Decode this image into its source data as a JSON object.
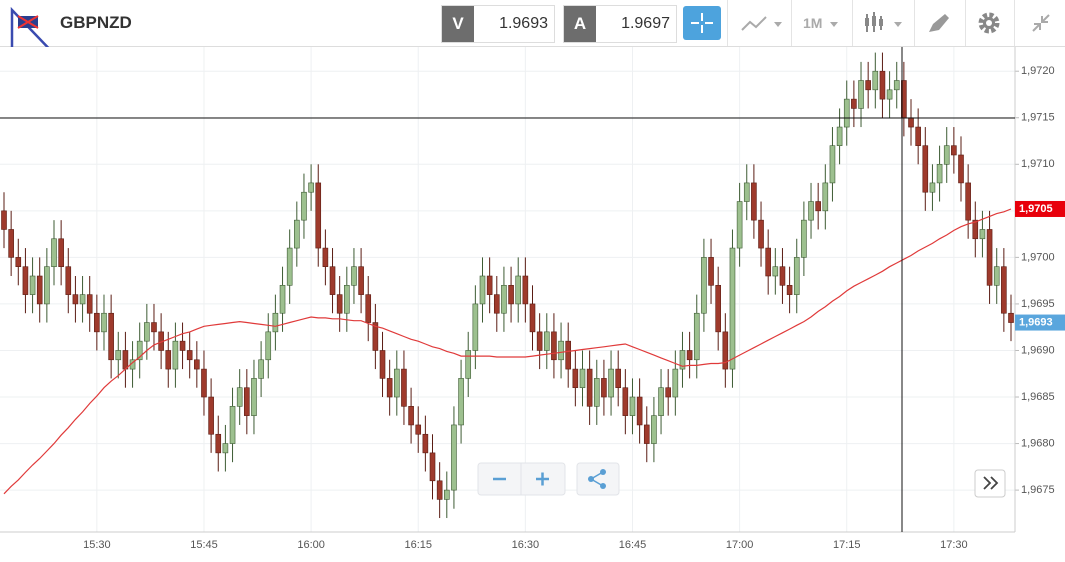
{
  "toolbar": {
    "symbol": "GBPNZD",
    "bid_label": "V",
    "bid": "1.9693",
    "ask_label": "A",
    "ask": "1.9697",
    "timeframe": "1M"
  },
  "chart_data": {
    "type": "candlestick",
    "categories": [
      null,
      null,
      null,
      null,
      null,
      null,
      null,
      null,
      null,
      null,
      null,
      null,
      null,
      "15:30",
      null,
      null,
      null,
      null,
      null,
      null,
      null,
      null,
      null,
      null,
      null,
      null,
      null,
      null,
      "15:45",
      null,
      null,
      null,
      null,
      null,
      null,
      null,
      null,
      null,
      null,
      null,
      null,
      null,
      null,
      "16:00",
      null,
      null,
      null,
      null,
      null,
      null,
      null,
      null,
      null,
      null,
      null,
      null,
      null,
      null,
      "16:15",
      null,
      null,
      null,
      null,
      null,
      null,
      null,
      null,
      null,
      null,
      null,
      null,
      null,
      null,
      "16:30",
      null,
      null,
      null,
      null,
      null,
      null,
      null,
      null,
      null,
      null,
      null,
      null,
      null,
      null,
      "16:45",
      null,
      null,
      null,
      null,
      null,
      null,
      null,
      null,
      null,
      null,
      null,
      null,
      null,
      null,
      "17:00",
      null,
      null,
      null,
      null,
      null,
      null,
      null,
      null,
      null,
      null,
      null,
      null,
      null,
      null,
      "17:15",
      null,
      null,
      null,
      null,
      null,
      null,
      null,
      null,
      null,
      null,
      null,
      null,
      null,
      null,
      "17:30",
      null,
      null,
      null,
      null,
      null,
      null,
      null,
      null
    ],
    "open": [
      1.9705,
      1.9703,
      1.97,
      1.9699,
      1.9696,
      1.9698,
      1.9695,
      1.9699,
      1.9702,
      1.9699,
      1.9696,
      1.9695,
      1.9696,
      1.9694,
      1.9692,
      1.9694,
      1.9689,
      1.969,
      1.9688,
      1.9689,
      1.9691,
      1.9693,
      1.9692,
      1.969,
      1.9688,
      1.9691,
      1.969,
      1.9689,
      1.9688,
      1.9685,
      1.9681,
      1.9679,
      1.968,
      1.9684,
      1.9686,
      1.9683,
      1.9687,
      1.9689,
      1.9692,
      1.9694,
      1.9697,
      1.9701,
      1.9704,
      1.9707,
      1.9708,
      1.9701,
      1.9699,
      1.9696,
      1.9694,
      1.9697,
      1.9699,
      1.9696,
      1.9693,
      1.969,
      1.9687,
      1.9685,
      1.9688,
      1.9684,
      1.9682,
      1.9681,
      1.9679,
      1.9676,
      1.9674,
      1.9675,
      1.9682,
      1.9687,
      1.969,
      1.9695,
      1.9698,
      1.9696,
      1.9694,
      1.9697,
      1.9695,
      1.9698,
      1.9695,
      1.9692,
      1.969,
      1.9692,
      1.9689,
      1.9691,
      1.9688,
      1.9686,
      1.9688,
      1.9684,
      1.9687,
      1.9685,
      1.9688,
      1.9686,
      1.9683,
      1.9685,
      1.9682,
      1.968,
      1.9683,
      1.9686,
      1.9685,
      1.9688,
      1.969,
      1.9689,
      1.9694,
      1.97,
      1.9697,
      1.9692,
      1.9688,
      1.9701,
      1.9706,
      1.9708,
      1.9704,
      1.9701,
      1.9698,
      1.9699,
      1.9697,
      1.9696,
      1.97,
      1.9704,
      1.9706,
      1.9705,
      1.9708,
      1.9712,
      1.9714,
      1.9717,
      1.9716,
      1.9719,
      1.9718,
      1.972,
      1.9717,
      1.9718,
      1.9719,
      1.9715,
      1.9714,
      1.9712,
      1.9707,
      1.9708,
      1.971,
      1.9712,
      1.9711,
      1.9708,
      1.9704,
      1.9702,
      1.9703,
      1.9697,
      1.9699,
      1.9694
    ],
    "high": [
      1.9707,
      1.9705,
      1.9702,
      1.9701,
      1.97,
      1.97,
      1.9701,
      1.9704,
      1.9704,
      1.9701,
      1.9698,
      1.9698,
      1.9698,
      1.9696,
      1.9696,
      1.9696,
      1.9692,
      1.9692,
      1.9691,
      1.9693,
      1.9695,
      1.9695,
      1.9694,
      1.9692,
      1.9693,
      1.9693,
      1.9692,
      1.9691,
      1.969,
      1.9687,
      1.9683,
      1.9682,
      1.9686,
      1.9688,
      1.9688,
      1.9689,
      1.9691,
      1.9694,
      1.9696,
      1.9699,
      1.9703,
      1.9706,
      1.9709,
      1.971,
      1.971,
      1.9703,
      1.9701,
      1.9698,
      1.9699,
      1.9701,
      1.9701,
      1.9698,
      1.9695,
      1.9692,
      1.9689,
      1.969,
      1.969,
      1.9686,
      1.9684,
      1.9683,
      1.9681,
      1.9678,
      1.9677,
      1.9684,
      1.9689,
      1.9692,
      1.9697,
      1.97,
      1.97,
      1.9698,
      1.9699,
      1.9699,
      1.97,
      1.97,
      1.9697,
      1.9694,
      1.9694,
      1.9694,
      1.9693,
      1.9693,
      1.969,
      1.969,
      1.969,
      1.9689,
      1.9689,
      1.969,
      1.969,
      1.9688,
      1.9687,
      1.9687,
      1.9684,
      1.9685,
      1.9688,
      1.9688,
      1.969,
      1.9692,
      1.9692,
      1.9696,
      1.9702,
      1.9702,
      1.9699,
      1.9694,
      1.9703,
      1.9708,
      1.971,
      1.971,
      1.9706,
      1.9703,
      1.9701,
      1.9701,
      1.9699,
      1.9702,
      1.9706,
      1.9708,
      1.9708,
      1.971,
      1.9714,
      1.9716,
      1.9719,
      1.9719,
      1.9721,
      1.9721,
      1.9722,
      1.9722,
      1.972,
      1.9721,
      1.9721,
      1.9717,
      1.9716,
      1.9714,
      1.971,
      1.9712,
      1.9714,
      1.9714,
      1.9713,
      1.971,
      1.9706,
      1.9705,
      1.9705,
      1.9701,
      1.9701,
      1.9696
    ],
    "low": [
      1.9701,
      1.9698,
      1.9697,
      1.9694,
      1.9694,
      1.9693,
      1.9693,
      1.9697,
      1.9697,
      1.9694,
      1.9693,
      1.9693,
      1.9692,
      1.969,
      1.969,
      1.9687,
      1.9687,
      1.9686,
      1.9686,
      1.9687,
      1.9689,
      1.969,
      1.9688,
      1.9686,
      1.9686,
      1.9688,
      1.9687,
      1.9686,
      1.9683,
      1.9679,
      1.9677,
      1.9677,
      1.9678,
      1.9682,
      1.9681,
      1.9681,
      1.9685,
      1.9687,
      1.969,
      1.9692,
      1.9695,
      1.9699,
      1.9702,
      1.9705,
      1.9699,
      1.9697,
      1.9694,
      1.9692,
      1.9692,
      1.9695,
      1.9694,
      1.9691,
      1.9688,
      1.9685,
      1.9683,
      1.9683,
      1.9682,
      1.968,
      1.9679,
      1.9677,
      1.9674,
      1.9672,
      1.9672,
      1.9673,
      1.968,
      1.9685,
      1.9688,
      1.9693,
      1.9694,
      1.9692,
      1.9692,
      1.9693,
      1.9693,
      1.9693,
      1.969,
      1.9688,
      1.9688,
      1.9687,
      1.9687,
      1.9686,
      1.9684,
      1.9684,
      1.9682,
      1.9682,
      1.9683,
      1.9683,
      1.9684,
      1.9681,
      1.9681,
      1.968,
      1.9678,
      1.9678,
      1.9681,
      1.9683,
      1.9683,
      1.9686,
      1.9687,
      1.9687,
      1.9692,
      1.9695,
      1.969,
      1.9686,
      1.9686,
      1.9699,
      1.9704,
      1.9702,
      1.9699,
      1.9696,
      1.9696,
      1.9695,
      1.9694,
      1.9694,
      1.9698,
      1.9702,
      1.9703,
      1.9703,
      1.9706,
      1.971,
      1.9712,
      1.9714,
      1.9714,
      1.9716,
      1.9716,
      1.9715,
      1.9715,
      1.9716,
      1.9713,
      1.9712,
      1.971,
      1.9705,
      1.9705,
      1.9706,
      1.9708,
      1.9709,
      1.9706,
      1.9702,
      1.97,
      1.97,
      1.9695,
      1.9695,
      1.9692,
      1.9691
    ],
    "close": [
      1.9703,
      1.97,
      1.9699,
      1.9696,
      1.9698,
      1.9695,
      1.9699,
      1.9702,
      1.9699,
      1.9696,
      1.9695,
      1.9696,
      1.9694,
      1.9692,
      1.9694,
      1.9689,
      1.969,
      1.9688,
      1.9689,
      1.9691,
      1.9693,
      1.9692,
      1.969,
      1.9688,
      1.9691,
      1.969,
      1.9689,
      1.9688,
      1.9685,
      1.9681,
      1.9679,
      1.968,
      1.9684,
      1.9686,
      1.9683,
      1.9687,
      1.9689,
      1.9692,
      1.9694,
      1.9697,
      1.9701,
      1.9704,
      1.9707,
      1.9708,
      1.9701,
      1.9699,
      1.9696,
      1.9694,
      1.9697,
      1.9699,
      1.9696,
      1.9693,
      1.969,
      1.9687,
      1.9685,
      1.9688,
      1.9684,
      1.9682,
      1.9681,
      1.9679,
      1.9676,
      1.9674,
      1.9675,
      1.9682,
      1.9687,
      1.969,
      1.9695,
      1.9698,
      1.9696,
      1.9694,
      1.9697,
      1.9695,
      1.9698,
      1.9695,
      1.9692,
      1.969,
      1.9692,
      1.9689,
      1.9691,
      1.9688,
      1.9686,
      1.9688,
      1.9684,
      1.9687,
      1.9685,
      1.9688,
      1.9686,
      1.9683,
      1.9685,
      1.9682,
      1.968,
      1.9683,
      1.9686,
      1.9685,
      1.9688,
      1.969,
      1.9689,
      1.9694,
      1.97,
      1.9697,
      1.9692,
      1.9688,
      1.9701,
      1.9706,
      1.9708,
      1.9704,
      1.9701,
      1.9698,
      1.9699,
      1.9697,
      1.9696,
      1.97,
      1.9704,
      1.9706,
      1.9705,
      1.9708,
      1.9712,
      1.9714,
      1.9717,
      1.9716,
      1.9719,
      1.9718,
      1.972,
      1.9717,
      1.9718,
      1.9719,
      1.9715,
      1.9714,
      1.9712,
      1.9707,
      1.9708,
      1.971,
      1.9712,
      1.9711,
      1.9708,
      1.9704,
      1.9702,
      1.9703,
      1.9697,
      1.9699,
      1.9694,
      1.9693
    ],
    "up_color": "#9dc08f",
    "down_color": "#9e3a2c",
    "ma": {
      "color": "#e03a3a",
      "values": [
        1.96746,
        1.96754,
        1.96761,
        1.96769,
        1.96777,
        1.96784,
        1.96792,
        1.968,
        1.96809,
        1.96817,
        1.96826,
        1.96834,
        1.96843,
        1.96851,
        1.9686,
        1.96867,
        1.96873,
        1.9688,
        1.96887,
        1.96893,
        1.969,
        1.96906,
        1.96909,
        1.96912,
        1.96915,
        1.96918,
        1.9692,
        1.96923,
        1.96926,
        1.96927,
        1.96928,
        1.96929,
        1.9693,
        1.96931,
        1.9693,
        1.96929,
        1.96928,
        1.96927,
        1.96926,
        1.96928,
        1.9693,
        1.96932,
        1.96934,
        1.96936,
        1.96935,
        1.96935,
        1.96934,
        1.96934,
        1.96933,
        1.96932,
        1.96932,
        1.96929,
        1.96926,
        1.96924,
        1.96921,
        1.96918,
        1.96915,
        1.96912,
        1.9691,
        1.96907,
        1.96904,
        1.96902,
        1.96899,
        1.96897,
        1.96894,
        1.96894,
        1.96894,
        1.96894,
        1.96894,
        1.96893,
        1.96893,
        1.96893,
        1.96893,
        1.96893,
        1.96894,
        1.96895,
        1.96896,
        1.96897,
        1.96898,
        1.96899,
        1.969,
        1.96901,
        1.96902,
        1.96903,
        1.96904,
        1.96905,
        1.96906,
        1.96907,
        1.96904,
        1.96901,
        1.96898,
        1.96895,
        1.96892,
        1.96889,
        1.96886,
        1.96883,
        1.96884,
        1.96884,
        1.96885,
        1.96886,
        1.96886,
        1.96887,
        1.96891,
        1.96895,
        1.96899,
        1.96903,
        1.96907,
        1.96911,
        1.96915,
        1.96919,
        1.96923,
        1.96927,
        1.96931,
        1.96936,
        1.96942,
        1.96947,
        1.96953,
        1.96958,
        1.96964,
        1.96969,
        1.96973,
        1.96977,
        1.96981,
        1.96985,
        1.9699,
        1.96994,
        1.96998,
        1.97002,
        1.97007,
        1.97011,
        1.97015,
        1.9702,
        1.97024,
        1.97029,
        1.97033,
        1.97036,
        1.97038,
        1.97041,
        1.97044,
        1.97047,
        1.97049,
        1.97052
      ]
    },
    "price_labels": [
      {
        "value": 1.97052,
        "label": "1,9705",
        "color": "#e8000b"
      },
      {
        "value": 1.9693,
        "label": "1,9693",
        "color": "#5aa6dd"
      }
    ],
    "ylim": [
      1.96705,
      1.97226
    ],
    "yticks": [
      {
        "value": 1.972,
        "label": "1,9720"
      },
      {
        "value": 1.9715,
        "label": "1,9715"
      },
      {
        "value": 1.971,
        "label": "1,9710"
      },
      {
        "value": 1.9705,
        "label": "1,9705"
      },
      {
        "value": 1.97,
        "label": "1,9700"
      },
      {
        "value": 1.9695,
        "label": "1,9695"
      },
      {
        "value": 1.969,
        "label": "1,9690"
      },
      {
        "value": 1.9685,
        "label": "1,9685"
      },
      {
        "value": 1.968,
        "label": "1,9680"
      },
      {
        "value": 1.9675,
        "label": "1,9675"
      }
    ],
    "grid": true
  }
}
